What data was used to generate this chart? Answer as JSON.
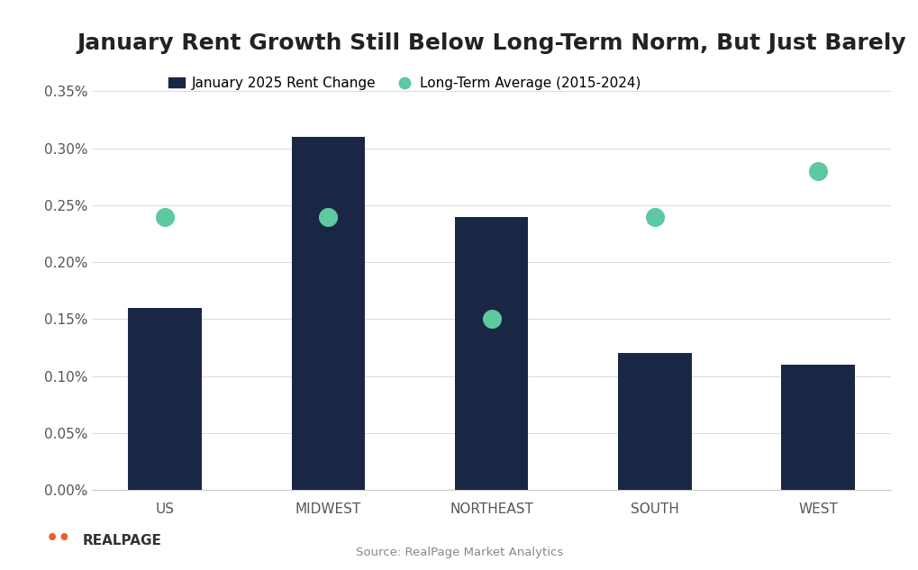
{
  "title": "January Rent Growth Still Below Long-Term Norm, But Just Barely",
  "categories": [
    "US",
    "MIDWEST",
    "NORTHEAST",
    "SOUTH",
    "WEST"
  ],
  "bar_values": [
    0.0016,
    0.0031,
    0.0024,
    0.0012,
    0.0011
  ],
  "dot_values": [
    0.0024,
    0.0024,
    0.0015,
    0.0024,
    0.0028
  ],
  "bar_color": "#1a2744",
  "dot_color": "#5ec8a0",
  "ylim": [
    0,
    0.0037
  ],
  "yticks": [
    0.0,
    0.0005,
    0.001,
    0.0015,
    0.002,
    0.0025,
    0.003,
    0.0035
  ],
  "ytick_labels": [
    "0.00%",
    "0.05%",
    "0.10%",
    "0.15%",
    "0.20%",
    "0.25%",
    "0.30%",
    "0.35%"
  ],
  "legend_bar_label": "January 2025 Rent Change",
  "legend_dot_label": "Long-Term Average (2015-2024)",
  "source_text": "Source: RealPage Market Analytics",
  "realpage_text": "REALPAGE",
  "background_color": "#ffffff",
  "top_bar_color": "#5ec8a0",
  "title_fontsize": 18,
  "tick_fontsize": 11
}
